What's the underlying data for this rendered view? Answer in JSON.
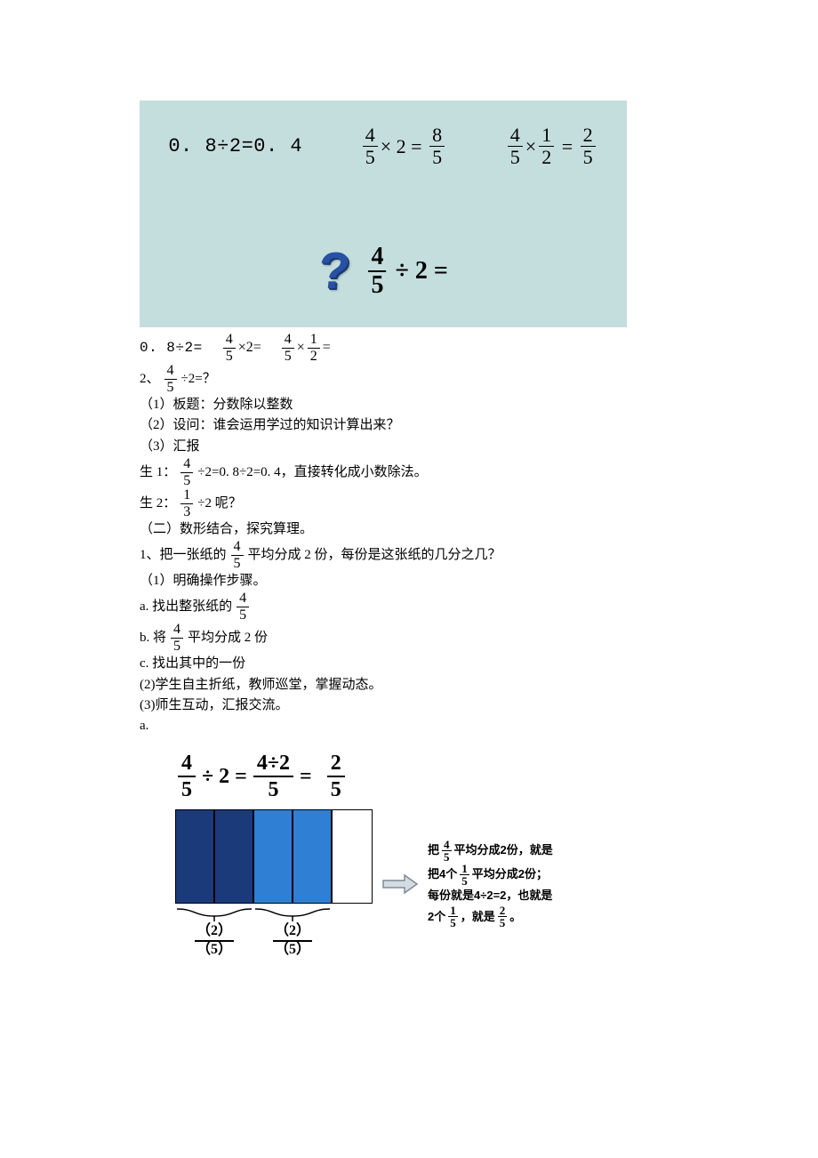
{
  "hero": {
    "background_color": "#c4dedd",
    "equations": {
      "e1_left": "0. 8÷2",
      "e1_eq": " =0. 4",
      "e2_frac": {
        "n": "4",
        "d": "5"
      },
      "e2_mid": "× 2 =",
      "e2_res": {
        "n": "8",
        "d": "5"
      },
      "e3_frac1": {
        "n": "4",
        "d": "5"
      },
      "e3_times": "×",
      "e3_frac2": {
        "n": "1",
        "d": "2"
      },
      "e3_eq": "=",
      "e3_res": {
        "n": "2",
        "d": "5"
      }
    },
    "question": {
      "mark": "?",
      "frac": {
        "n": "4",
        "d": "5"
      },
      "rest": "÷ 2 ="
    }
  },
  "body": {
    "oral_prefix": "0. 8÷2=",
    "oral_f1": {
      "n": "4",
      "d": "5"
    },
    "oral_mid1": "×2=",
    "oral_f2": {
      "n": "4",
      "d": "5"
    },
    "oral_mid2": "×",
    "oral_f3": {
      "n": "1",
      "d": "2"
    },
    "oral_suffix": "=",
    "sec2_prefix": "2、",
    "sec2_frac": {
      "n": "4",
      "d": "5"
    },
    "sec2_suffix": "÷2=？",
    "p1": "（1）板题：分数除以整数",
    "p2": "（2）设问：谁会运用学过的知识计算出来？",
    "p3": "（3）汇报",
    "s1_prefix": "生 1：",
    "s1_frac": {
      "n": "4",
      "d": "5"
    },
    "s1_suffix": "÷2=0. 8÷2=0. 4，直接转化成小数除法。",
    "s2_prefix": "生 2：",
    "s2_frac": {
      "n": "1",
      "d": "3"
    },
    "s2_suffix": "÷2 呢？",
    "sec_ii": "（二）数形结合，探究算理。",
    "q1_prefix": "1、把一张纸的",
    "q1_frac": {
      "n": "4",
      "d": "5"
    },
    "q1_suffix": "平均分成 2 份，每份是这张纸的几分之几？",
    "step1": "（1）明确操作步骤。",
    "a_prefix": " a. 找出整张纸的",
    "a_frac": {
      "n": "4",
      "d": "5"
    },
    "b_prefix": " b. 将",
    "b_frac": {
      "n": "4",
      "d": "5"
    },
    "b_suffix": "平均分成 2 份",
    "c_text": " c. 找出其中的一份",
    "step2": "(2)学生自主折纸，教师巡堂，掌握动态。",
    "step3": "(3)师生互动，汇报交流。",
    "a_line": " a."
  },
  "chart": {
    "eq": {
      "f1": {
        "n": "4",
        "d": "5"
      },
      "div": "÷ 2 =",
      "f2": {
        "n": "4÷2",
        "d": "5"
      },
      "eq": "=",
      "f3": {
        "n": "2",
        "d": "5"
      }
    },
    "bars": {
      "widths": [
        44,
        44,
        44,
        44,
        44
      ],
      "colors": [
        "#1b3a7a",
        "#1b3a7a",
        "#2f7fd4",
        "#2f7fd4",
        "#ffffff"
      ],
      "border_color": "#000000"
    },
    "brace_label": {
      "n": "（2）",
      "d": "（5）"
    },
    "arrow_stroke": "#9aa9b5",
    "arrow_fill": "#d5dce1",
    "explain": {
      "l1a": "把",
      "l1_f1": {
        "n": "4",
        "d": "5"
      },
      "l1b": "平均分成2份，就是",
      "l2a": "把4个",
      "l2_f1": {
        "n": "1",
        "d": "5"
      },
      "l2b": "平均分成2份；",
      "l3": "每份就是4÷2=2，也就是",
      "l4a": "2个",
      "l4_f1": {
        "n": "1",
        "d": "5"
      },
      "l4b": "，就是",
      "l4_f2": {
        "n": "2",
        "d": "5"
      },
      "l4c": "    。"
    }
  }
}
